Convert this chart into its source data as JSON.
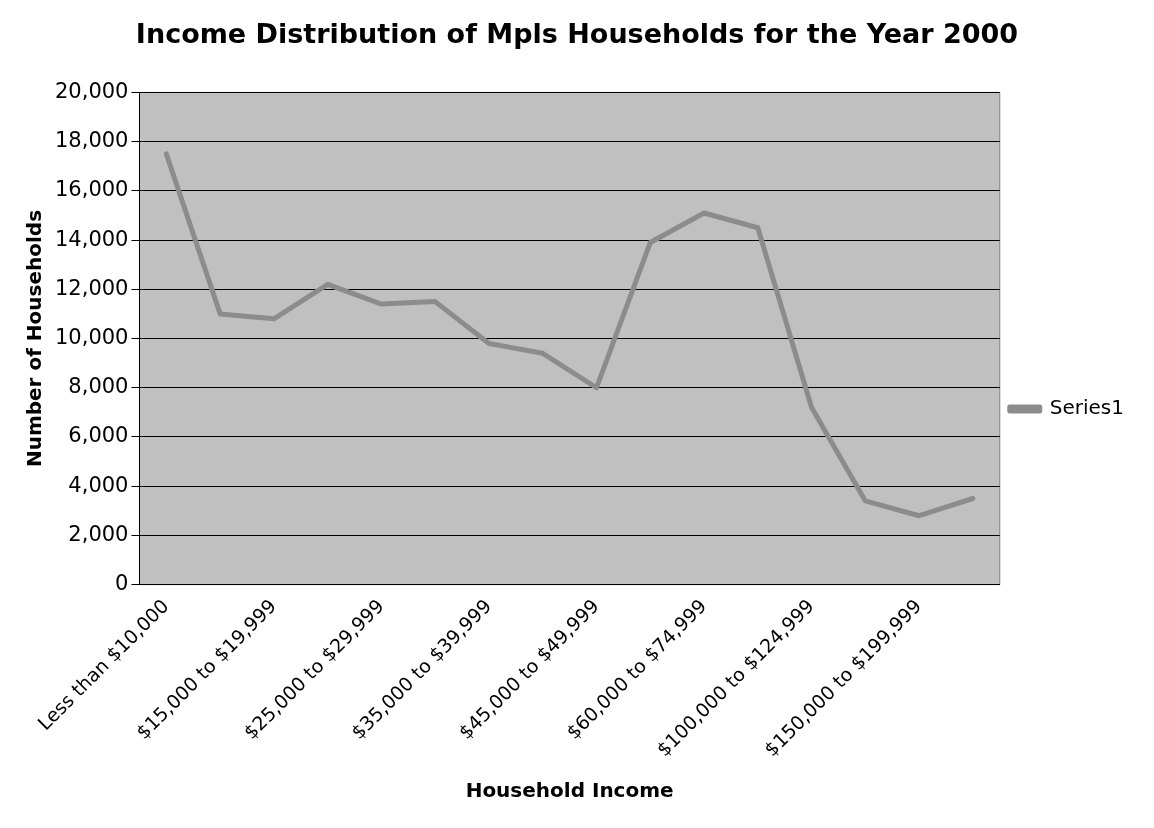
{
  "chart_data": {
    "type": "line",
    "title": "Income Distribution of Mpls Households for the Year 2000",
    "xlabel": "Household Income",
    "ylabel": "Number of Households",
    "categories": [
      "Less than $10,000",
      null,
      "$15,000 to $19,999",
      null,
      "$25,000 to $29,999",
      null,
      "$35,000 to $39,999",
      null,
      "$45,000 to $49,999",
      null,
      "$60,000 to $74,999",
      null,
      "$100,000 to $124,999",
      null,
      "$150,000 to $199,999",
      null
    ],
    "series": [
      {
        "name": "Series1",
        "color": "#8c8c8c",
        "values": [
          17500,
          11000,
          10800,
          12200,
          11400,
          11500,
          9800,
          9400,
          8000,
          13900,
          15100,
          14500,
          7200,
          3400,
          2800,
          3500
        ]
      }
    ],
    "ylim": [
      0,
      20000
    ],
    "yticks": [
      {
        "value": 0,
        "label": "0"
      },
      {
        "value": 2000,
        "label": "2,000"
      },
      {
        "value": 4000,
        "label": "4,000"
      },
      {
        "value": 6000,
        "label": "6,000"
      },
      {
        "value": 8000,
        "label": "8,000"
      },
      {
        "value": 10000,
        "label": "10,000"
      },
      {
        "value": 12000,
        "label": "12,000"
      },
      {
        "value": 14000,
        "label": "14,000"
      },
      {
        "value": 16000,
        "label": "16,000"
      },
      {
        "value": 18000,
        "label": "18,000"
      },
      {
        "value": 20000,
        "label": "20,000"
      }
    ],
    "grid": "y",
    "legend": "right",
    "marker": "none",
    "line_style": "solid"
  }
}
